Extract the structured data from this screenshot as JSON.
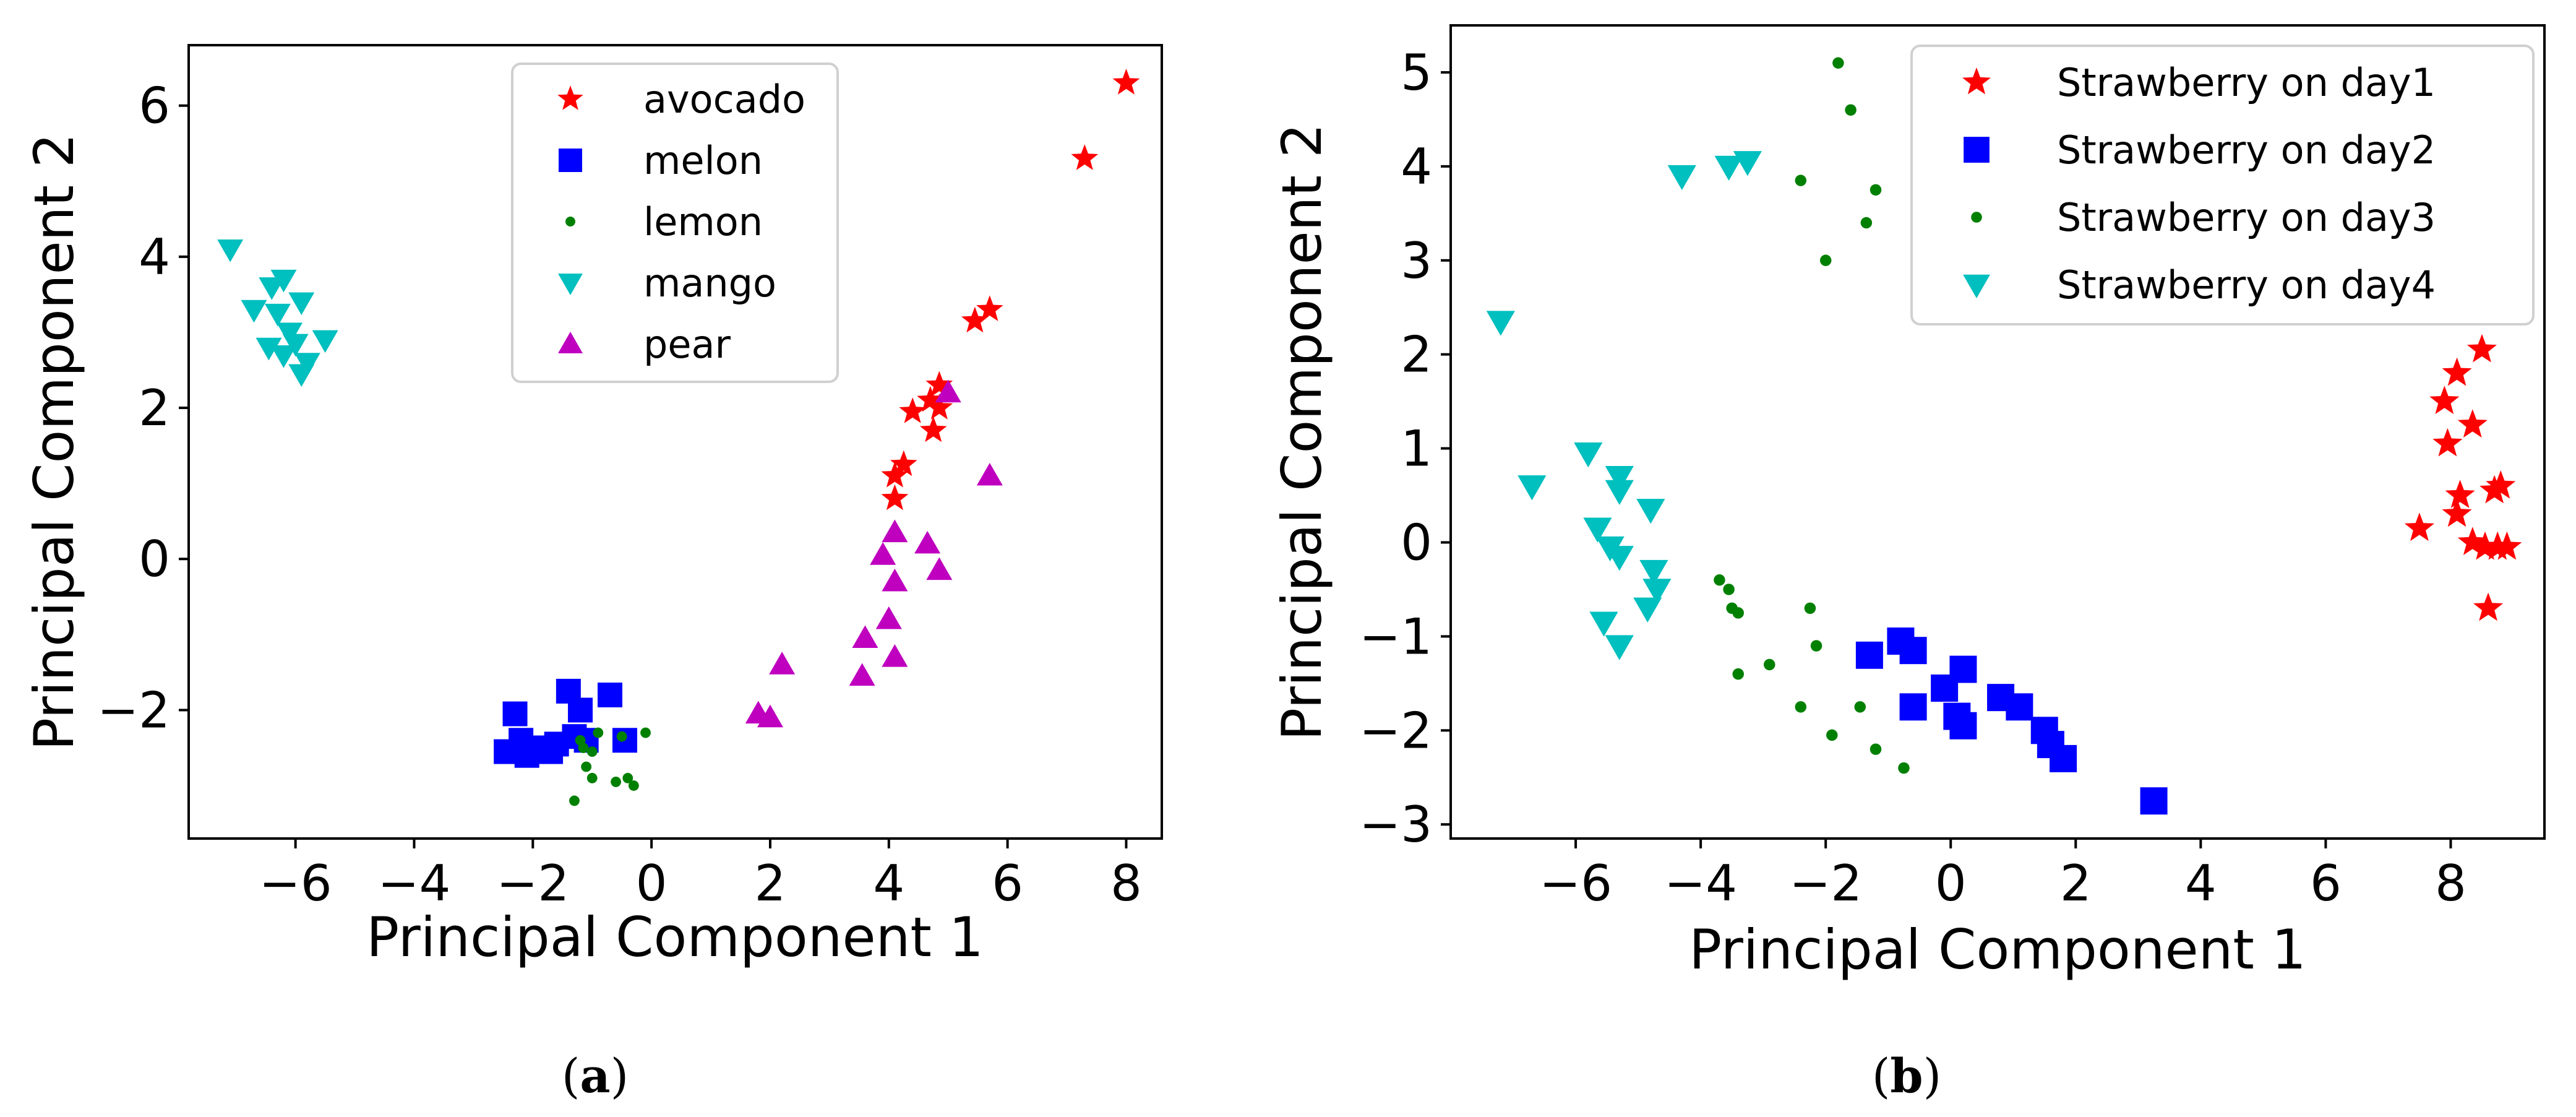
{
  "figure": {
    "panels": [
      {
        "label_open": "(",
        "label_letter": "a",
        "label_close": ")"
      },
      {
        "label_open": "(",
        "label_letter": "b",
        "label_close": ")"
      }
    ]
  },
  "chart_data": [
    {
      "type": "scatter",
      "title": "",
      "xlabel": "Principal Component 1",
      "ylabel": "Principal Component 2",
      "xlim": [
        -7.8,
        8.6
      ],
      "ylim": [
        -3.7,
        6.8
      ],
      "xticks": [
        -6,
        -4,
        -2,
        0,
        2,
        4,
        6,
        8
      ],
      "yticks": [
        -2,
        0,
        2,
        4,
        6
      ],
      "legend_position": "top-center",
      "series": [
        {
          "name": "avocado",
          "marker": "star",
          "color": "#ff0000",
          "points": [
            [
              8.0,
              6.3
            ],
            [
              7.3,
              5.3
            ],
            [
              5.7,
              3.3
            ],
            [
              5.45,
              3.15
            ],
            [
              4.85,
              2.3
            ],
            [
              4.7,
              2.1
            ],
            [
              4.85,
              2.0
            ],
            [
              4.4,
              1.95
            ],
            [
              4.75,
              1.7
            ],
            [
              4.25,
              1.25
            ],
            [
              4.1,
              1.1
            ],
            [
              4.1,
              0.8
            ]
          ]
        },
        {
          "name": "melon",
          "marker": "square",
          "color": "#0000ff",
          "points": [
            [
              -2.3,
              -2.05
            ],
            [
              -1.4,
              -1.75
            ],
            [
              -0.7,
              -1.8
            ],
            [
              -1.2,
              -2.0
            ],
            [
              -2.45,
              -2.55
            ],
            [
              -2.1,
              -2.6
            ],
            [
              -1.9,
              -2.5
            ],
            [
              -1.6,
              -2.45
            ],
            [
              -1.3,
              -2.35
            ],
            [
              -2.2,
              -2.4
            ],
            [
              -0.45,
              -2.4
            ],
            [
              -1.1,
              -2.4
            ],
            [
              -1.7,
              -2.55
            ]
          ]
        },
        {
          "name": "lemon",
          "marker": "circle",
          "color": "#008000",
          "points": [
            [
              -1.3,
              -3.2
            ],
            [
              -1.1,
              -2.75
            ],
            [
              -1.0,
              -2.9
            ],
            [
              -0.4,
              -2.9
            ],
            [
              -0.3,
              -3.0
            ],
            [
              -0.6,
              -2.95
            ],
            [
              -0.1,
              -2.3
            ],
            [
              -0.5,
              -2.35
            ],
            [
              -1.2,
              -2.4
            ],
            [
              -0.9,
              -2.3
            ],
            [
              -1.0,
              -2.55
            ],
            [
              -1.15,
              -2.5
            ]
          ]
        },
        {
          "name": "mango",
          "marker": "triangle-down",
          "color": "#00bfbf",
          "points": [
            [
              -7.1,
              4.1
            ],
            [
              -6.2,
              3.7
            ],
            [
              -6.4,
              3.6
            ],
            [
              -6.7,
              3.3
            ],
            [
              -6.3,
              3.25
            ],
            [
              -5.9,
              3.4
            ],
            [
              -6.1,
              3.0
            ],
            [
              -6.45,
              2.8
            ],
            [
              -6.2,
              2.7
            ],
            [
              -6.0,
              2.85
            ],
            [
              -5.8,
              2.6
            ],
            [
              -5.5,
              2.9
            ],
            [
              -5.9,
              2.45
            ]
          ]
        },
        {
          "name": "pear",
          "marker": "triangle-up",
          "color": "#bf00bf",
          "points": [
            [
              5.0,
              2.2
            ],
            [
              5.7,
              1.1
            ],
            [
              4.1,
              0.35
            ],
            [
              3.9,
              0.05
            ],
            [
              4.65,
              0.2
            ],
            [
              4.1,
              -0.3
            ],
            [
              4.85,
              -0.15
            ],
            [
              4.0,
              -0.8
            ],
            [
              3.6,
              -1.05
            ],
            [
              4.1,
              -1.3
            ],
            [
              3.55,
              -1.55
            ],
            [
              2.2,
              -1.4
            ],
            [
              1.8,
              -2.05
            ],
            [
              2.0,
              -2.1
            ]
          ]
        }
      ]
    },
    {
      "type": "scatter",
      "title": "",
      "xlabel": "Principal Component 1",
      "ylabel": "Principal Component 2",
      "xlim": [
        -8.0,
        9.5
      ],
      "ylim": [
        -3.15,
        5.5
      ],
      "xticks": [
        -6,
        -4,
        -2,
        0,
        2,
        4,
        6,
        8
      ],
      "yticks": [
        -3,
        -2,
        -1,
        0,
        1,
        2,
        3,
        4,
        5
      ],
      "legend_position": "top-right",
      "series": [
        {
          "name": "Strawberry on day1",
          "marker": "star",
          "color": "#ff0000",
          "points": [
            [
              8.5,
              2.05
            ],
            [
              8.1,
              1.8
            ],
            [
              7.9,
              1.5
            ],
            [
              8.35,
              1.25
            ],
            [
              7.95,
              1.05
            ],
            [
              8.15,
              0.5
            ],
            [
              8.8,
              0.6
            ],
            [
              8.7,
              0.55
            ],
            [
              8.1,
              0.3
            ],
            [
              7.5,
              0.15
            ],
            [
              8.35,
              0.0
            ],
            [
              8.55,
              -0.05
            ],
            [
              8.75,
              -0.05
            ],
            [
              8.9,
              -0.05
            ],
            [
              8.6,
              -0.7
            ]
          ]
        },
        {
          "name": "Strawberry on day2",
          "marker": "square",
          "color": "#0000ff",
          "points": [
            [
              -0.8,
              -1.05
            ],
            [
              -0.6,
              -1.15
            ],
            [
              -1.3,
              -1.2
            ],
            [
              0.2,
              -1.35
            ],
            [
              -0.1,
              -1.55
            ],
            [
              0.8,
              -1.65
            ],
            [
              1.1,
              -1.75
            ],
            [
              -0.6,
              -1.75
            ],
            [
              0.1,
              -1.85
            ],
            [
              0.2,
              -1.95
            ],
            [
              1.5,
              -2.0
            ],
            [
              1.6,
              -2.15
            ],
            [
              1.8,
              -2.3
            ],
            [
              3.25,
              -2.75
            ]
          ]
        },
        {
          "name": "Strawberry on day3",
          "marker": "circle",
          "color": "#008000",
          "points": [
            [
              -1.8,
              5.1
            ],
            [
              -1.6,
              4.6
            ],
            [
              -2.4,
              3.85
            ],
            [
              -1.2,
              3.75
            ],
            [
              -1.35,
              3.4
            ],
            [
              -2.0,
              3.0
            ],
            [
              -3.7,
              -0.4
            ],
            [
              -3.55,
              -0.5
            ],
            [
              -3.5,
              -0.7
            ],
            [
              -3.4,
              -0.75
            ],
            [
              -2.25,
              -0.7
            ],
            [
              -2.15,
              -1.1
            ],
            [
              -3.4,
              -1.4
            ],
            [
              -2.9,
              -1.3
            ],
            [
              -2.4,
              -1.75
            ],
            [
              -1.45,
              -1.75
            ],
            [
              -1.9,
              -2.05
            ],
            [
              -1.2,
              -2.2
            ],
            [
              -0.75,
              -2.4
            ]
          ]
        },
        {
          "name": "Strawberry on day4",
          "marker": "triangle-down",
          "color": "#00bfbf",
          "points": [
            [
              -4.3,
              3.9
            ],
            [
              -3.55,
              4.0
            ],
            [
              -3.25,
              4.05
            ],
            [
              -7.2,
              2.35
            ],
            [
              -5.8,
              0.95
            ],
            [
              -6.7,
              0.6
            ],
            [
              -5.3,
              0.7
            ],
            [
              -5.3,
              0.55
            ],
            [
              -4.8,
              0.35
            ],
            [
              -5.65,
              0.15
            ],
            [
              -5.45,
              -0.05
            ],
            [
              -5.3,
              -0.15
            ],
            [
              -4.75,
              -0.3
            ],
            [
              -4.7,
              -0.5
            ],
            [
              -4.85,
              -0.7
            ],
            [
              -5.55,
              -0.85
            ],
            [
              -5.3,
              -1.1
            ]
          ]
        }
      ]
    }
  ]
}
